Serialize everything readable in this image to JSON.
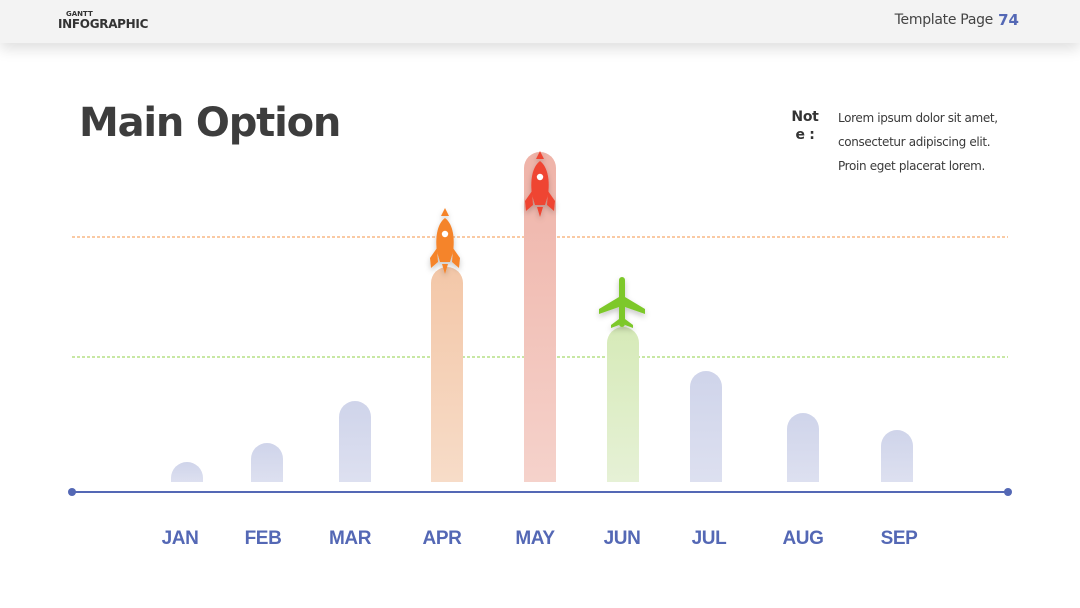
{
  "header": {
    "brand_small": "GANTT",
    "brand_big": "INFOGRAPHIC",
    "page_label": "Template Page",
    "page_number": "74"
  },
  "main": {
    "title": "Main Option",
    "note_label": "Note :",
    "note_text": "Lorem ipsum dolor sit amet, consectetur adipiscing elit. Proin eget placerat lorem."
  },
  "colors": {
    "accent": "#5468b5",
    "bar_default": "#d4d8ec",
    "orange": "#f5842a",
    "red": "#ef4430",
    "green": "#7dc82b"
  },
  "chart_data": {
    "type": "bar",
    "categories": [
      "JAN",
      "FEB",
      "MAR",
      "APR",
      "MAY",
      "JUN",
      "JUL",
      "AUG",
      "SEP"
    ],
    "values": [
      20,
      39,
      81,
      215,
      330,
      155,
      111,
      69,
      52
    ],
    "highlights": [
      {
        "category": "APR",
        "icon": "rocket-icon",
        "color": "orange"
      },
      {
        "category": "MAY",
        "icon": "rocket-icon",
        "color": "red"
      },
      {
        "category": "JUN",
        "icon": "airplane-icon",
        "color": "green"
      }
    ],
    "reference_lines": [
      {
        "value": 245,
        "color": "orange"
      },
      {
        "value": 125,
        "color": "green"
      }
    ],
    "title": "",
    "xlabel": "",
    "ylabel": "",
    "ylim": [
      0,
      360
    ],
    "grid": false,
    "legend": "none"
  }
}
